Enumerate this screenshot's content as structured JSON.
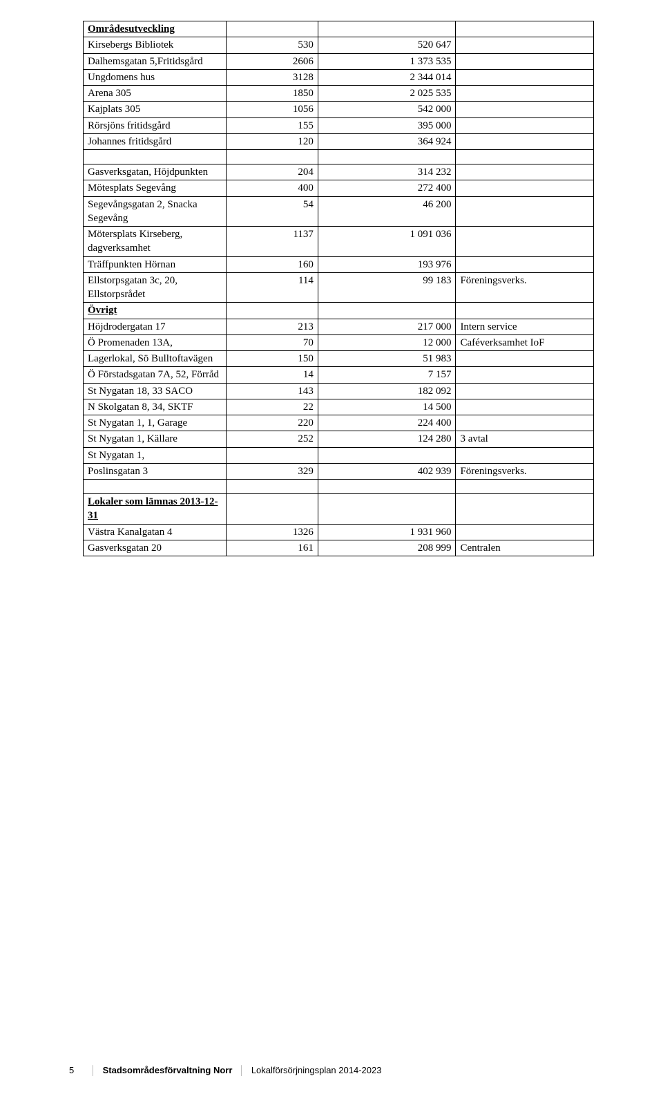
{
  "sections": {
    "areadev": "Områdesutveckling",
    "misc": "Övrigt",
    "returned": "Lokaler som lämnas 2013-12-31"
  },
  "rows": [
    {
      "label": "Kirsebergs Bibliotek",
      "c2": "530",
      "c3": "520 647",
      "c4": ""
    },
    {
      "label": "Dalhemsgatan 5,Fritidsgård",
      "c2": "2606",
      "c3": "1 373 535",
      "c4": ""
    },
    {
      "label": "Ungdomens hus",
      "c2": "3128",
      "c3": "2 344 014",
      "c4": ""
    },
    {
      "label": "Arena 305",
      "c2": "1850",
      "c3": "2 025 535",
      "c4": ""
    },
    {
      "label": "Kajplats 305",
      "c2": "1056",
      "c3": "542 000",
      "c4": ""
    },
    {
      "label": "Rörsjöns fritidsgård",
      "c2": "155",
      "c3": "395 000",
      "c4": ""
    },
    {
      "label": "Johannes fritidsgård",
      "c2": "120",
      "c3": "364 924",
      "c4": ""
    }
  ],
  "rows2": [
    {
      "label": "Gasverksgatan, Höjdpunkten",
      "c2": "204",
      "c3": "314 232",
      "c4": ""
    },
    {
      "label": "Mötesplats Segevång",
      "c2": "400",
      "c3": "272 400",
      "c4": ""
    },
    {
      "label": "Segevångsgatan 2, Snacka Segevång",
      "c2": "54",
      "c3": "46 200",
      "c4": ""
    },
    {
      "label": "Mötersplats Kirseberg, dagverksamhet",
      "c2": "1137",
      "c3": "1 091 036",
      "c4": ""
    },
    {
      "label": "Träffpunkten Hörnan",
      "c2": "160",
      "c3": "193 976",
      "c4": ""
    },
    {
      "label": "Ellstorpsgatan 3c, 20, Ellstorpsrådet",
      "c2": "114",
      "c3": "99 183",
      "c4": "Föreningsverks."
    }
  ],
  "rows3": [
    {
      "label": "Höjdrodergatan 17",
      "c2": "213",
      "c3": "217 000",
      "c4": "Intern service"
    },
    {
      "label": "Ö Promenaden 13A,",
      "c2": "70",
      "c3": "12 000",
      "c4": "Caféverksamhet IoF"
    },
    {
      "label": "Lagerlokal, Sö Bulltoftavägen",
      "c2": "150",
      "c3": "51 983",
      "c4": ""
    },
    {
      "label": "Ö Förstadsgatan 7A, 52,  Förråd",
      "c2": "14",
      "c3": "7 157",
      "c4": ""
    },
    {
      "label": "St Nygatan 18, 33 SACO",
      "c2": "143",
      "c3": "182 092",
      "c4": ""
    },
    {
      "label": "N Skolgatan 8, 34, SKTF",
      "c2": "22",
      "c3": "14 500",
      "c4": ""
    },
    {
      "label": "St Nygatan 1, 1, Garage",
      "c2": "220",
      "c3": "224 400",
      "c4": ""
    },
    {
      "label": "St Nygatan 1, Källare",
      "c2": "252",
      "c3": "124 280",
      "c4": "3 avtal"
    },
    {
      "label": "St Nygatan 1,",
      "c2": "",
      "c3": "",
      "c4": ""
    },
    {
      "label": "Poslinsgatan 3",
      "c2": "329",
      "c3": "402 939",
      "c4": "Föreningsverks."
    }
  ],
  "rows4": [
    {
      "label": "Västra Kanalgatan 4",
      "c2": "1326",
      "c3": "1 931 960",
      "c4": ""
    },
    {
      "label": "Gasverksgatan 20",
      "c2": "161",
      "c3": "208 999",
      "c4": "Centralen"
    }
  ],
  "footer": {
    "page": "5",
    "title": "Stadsområdesförvaltning Norr",
    "sub": "Lokalförsörjningsplan 2014-2023"
  }
}
